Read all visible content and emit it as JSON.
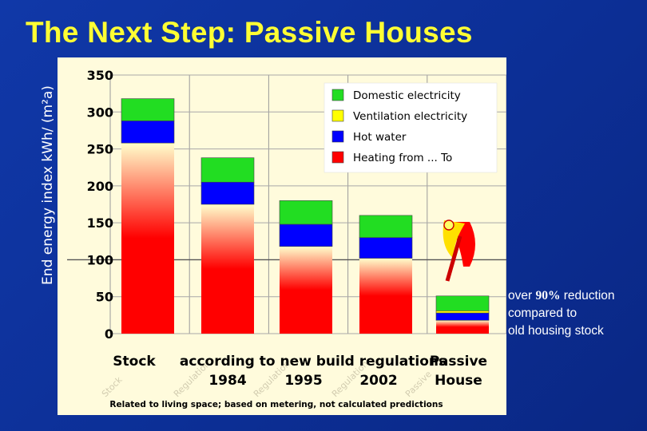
{
  "slide": {
    "title": "The Next Step: Passive Houses",
    "note": {
      "prefix": "over ",
      "highlight": "90%",
      "suffix": " reduction",
      "line2": "compared to",
      "line3": "old housing stock"
    }
  },
  "chart_data": {
    "type": "bar",
    "stacked": true,
    "ylabel": "End energy index kWh/ (m²a)",
    "ylim": [
      0,
      350
    ],
    "yticks": [
      0,
      50,
      100,
      150,
      200,
      250,
      300,
      350
    ],
    "grid": {
      "vertical": true,
      "horizontal": true,
      "major_line_at": 100
    },
    "categories": [
      "Stock",
      "1984",
      "1995",
      "2002",
      "House"
    ],
    "category_group_label": "according to new build regulations",
    "passive_label": "Passive",
    "side_labels": [
      "Stock",
      "Regulation",
      "Regulation",
      "Regulation",
      "Passive"
    ],
    "series": [
      {
        "name": "Heating from ... To",
        "color": "#ff0000",
        "gradient_to": "#ffffcc",
        "values": [
          258,
          175,
          118,
          102,
          18
        ]
      },
      {
        "name": "Hot water",
        "color": "#0000ff",
        "values": [
          30,
          30,
          30,
          28,
          10
        ]
      },
      {
        "name": "Ventilation electricity",
        "color": "#ffff00",
        "values": [
          0,
          0,
          0,
          0,
          3
        ]
      },
      {
        "name": "Domestic electricity",
        "color": "#22dd22",
        "values": [
          30,
          33,
          32,
          30,
          20
        ]
      }
    ],
    "legend": {
      "placement": "top-right",
      "entries": [
        "Domestic electricity",
        "Ventilation electricity",
        "Hot water",
        "Heating from ... To"
      ]
    },
    "footnote": "Related to living space; based on metering, not calculated predictions",
    "icon": "passive-house-logo-icon"
  }
}
